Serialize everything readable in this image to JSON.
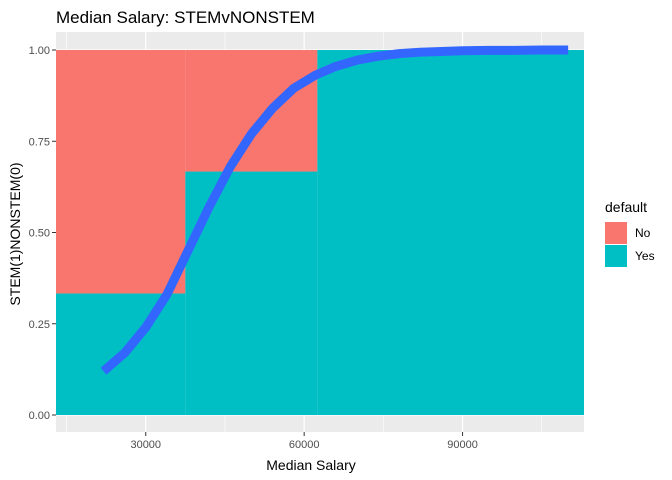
{
  "chart_data": {
    "type": "area",
    "title": "Median Salary: STEMvNONSTEM",
    "xlabel": "Median Salary",
    "ylabel": "STEM(1)NONSTEM(0)",
    "xlim": [
      13000,
      113000
    ],
    "ylim": [
      0,
      1
    ],
    "x_ticks": [
      30000,
      60000,
      90000
    ],
    "x_tick_labels": [
      "30000",
      "60000",
      "90000"
    ],
    "y_ticks": [
      0,
      0.25,
      0.5,
      0.75,
      1.0
    ],
    "y_tick_labels": [
      "0.00",
      "0.25",
      "0.50",
      "0.75",
      "1.00"
    ],
    "grid": true,
    "background": "#EBEBEB",
    "legend": {
      "title": "default",
      "position": "right",
      "entries": [
        {
          "label": "No",
          "color": "#F8766D"
        },
        {
          "label": "Yes",
          "color": "#00BFC4"
        }
      ]
    },
    "fill_segments": [
      {
        "x_start": 13000,
        "x_end": 37500,
        "yes": 0.333,
        "no": 0.667
      },
      {
        "x_start": 37500,
        "x_end": 62500,
        "yes": 0.667,
        "no": 0.333
      },
      {
        "x_start": 62500,
        "x_end": 113000,
        "yes": 1.0,
        "no": 0.0
      }
    ],
    "series": [
      {
        "type": "line",
        "color": "#3366FF",
        "x": [
          22000,
          26000,
          30000,
          34000,
          38000,
          42000,
          46000,
          50000,
          54000,
          58000,
          62000,
          66000,
          70000,
          74000,
          78000,
          82000,
          86000,
          90000,
          95000,
          100000,
          105000,
          110000
        ],
        "y": [
          0.12,
          0.17,
          0.24,
          0.33,
          0.45,
          0.57,
          0.68,
          0.77,
          0.84,
          0.895,
          0.93,
          0.955,
          0.972,
          0.983,
          0.99,
          0.994,
          0.996,
          0.998,
          0.999,
          0.999,
          1.0,
          1.0
        ]
      }
    ]
  }
}
